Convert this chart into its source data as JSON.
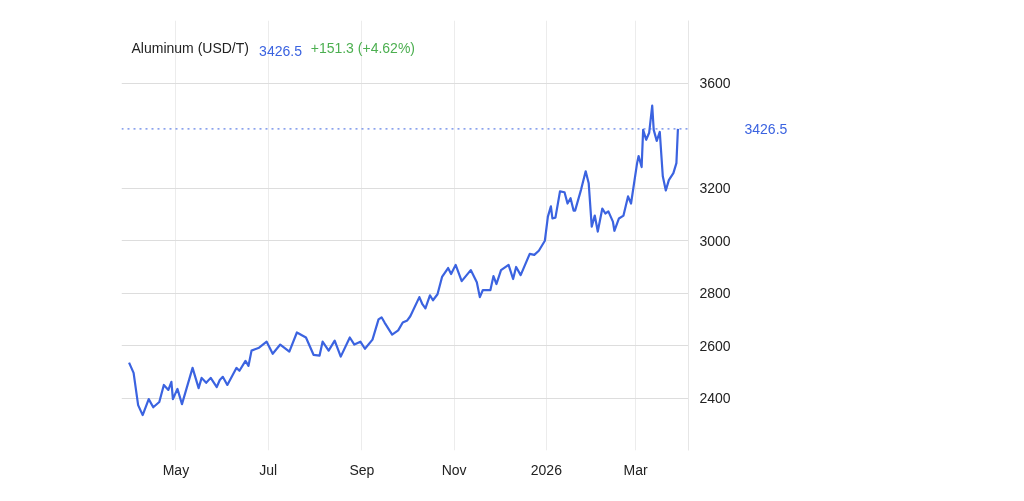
{
  "chart_data": {
    "type": "line",
    "title": "Aluminum (USD/T)",
    "annotations": [
      "3426.5",
      "+151.3 (+4.62%)"
    ],
    "x": [
      "2025-03-31",
      "2025-04-03",
      "2025-04-06",
      "2025-04-09",
      "2025-04-13",
      "2025-04-16",
      "2025-04-20",
      "2025-04-23",
      "2025-04-26",
      "2025-04-28",
      "2025-04-29",
      "2025-05-02",
      "2025-05-05",
      "2025-05-12",
      "2025-05-16",
      "2025-05-18",
      "2025-05-21",
      "2025-05-24",
      "2025-05-28",
      "2025-05-30",
      "2025-06-01",
      "2025-06-04",
      "2025-06-10",
      "2025-06-12",
      "2025-06-16",
      "2025-06-18",
      "2025-06-20",
      "2025-06-25",
      "2025-06-30",
      "2025-07-04",
      "2025-07-09",
      "2025-07-15",
      "2025-07-20",
      "2025-07-26",
      "2025-07-31",
      "2025-08-04",
      "2025-08-06",
      "2025-08-10",
      "2025-08-14",
      "2025-08-18",
      "2025-08-24",
      "2025-08-27",
      "2025-08-31",
      "2025-09-03",
      "2025-09-08",
      "2025-09-12",
      "2025-09-14",
      "2025-09-16",
      "2025-09-21",
      "2025-09-25",
      "2025-09-28",
      "2025-10-01",
      "2025-10-03",
      "2025-10-09",
      "2025-10-11",
      "2025-10-13",
      "2025-10-16",
      "2025-10-18",
      "2025-10-21",
      "2025-10-24",
      "2025-10-28",
      "2025-10-30",
      "2025-11-02",
      "2025-11-06",
      "2025-11-12",
      "2025-11-16",
      "2025-11-18",
      "2025-11-20",
      "2025-11-25",
      "2025-11-27",
      "2025-11-29",
      "2025-12-02",
      "2025-12-07",
      "2025-12-10",
      "2025-12-12",
      "2025-12-15",
      "2025-12-21",
      "2025-12-24",
      "2025-12-27",
      "2025-12-31",
      "2026-01-02",
      "2026-01-04",
      "2026-01-05",
      "2026-01-07",
      "2026-01-10",
      "2026-01-13",
      "2026-01-15",
      "2026-01-17",
      "2026-01-19",
      "2026-01-20",
      "2026-01-24",
      "2026-01-27",
      "2026-01-29",
      "2026-01-31",
      "2026-02-02",
      "2026-02-04",
      "2026-02-07",
      "2026-02-09",
      "2026-02-11",
      "2026-02-14",
      "2026-02-15",
      "2026-02-18",
      "2026-02-21",
      "2026-02-24",
      "2026-02-26",
      "2026-03-02",
      "2026-03-03",
      "2026-03-05",
      "2026-03-06",
      "2026-03-08",
      "2026-03-10",
      "2026-03-12",
      "2026-03-13",
      "2026-03-15",
      "2026-03-17",
      "2026-03-19",
      "2026-03-21",
      "2026-03-23",
      "2026-03-26",
      "2026-03-28",
      "2026-03-29"
    ],
    "series": [
      {
        "color": "#3b63e0",
        "values": [
          2535,
          2496,
          2373,
          2335,
          2396,
          2365,
          2385,
          2450,
          2431,
          2462,
          2396,
          2435,
          2377,
          2515,
          2438,
          2477,
          2458,
          2477,
          2442,
          2469,
          2481,
          2450,
          2515,
          2504,
          2542,
          2523,
          2581,
          2592,
          2615,
          2569,
          2604,
          2577,
          2650,
          2631,
          2565,
          2562,
          2615,
          2581,
          2619,
          2558,
          2631,
          2604,
          2615,
          2588,
          2623,
          2700,
          2708,
          2688,
          2642,
          2658,
          2688,
          2696,
          2712,
          2785,
          2758,
          2742,
          2792,
          2773,
          2796,
          2862,
          2896,
          2873,
          2908,
          2846,
          2888,
          2842,
          2785,
          2812,
          2812,
          2865,
          2835,
          2888,
          2908,
          2854,
          2900,
          2869,
          2950,
          2946,
          2962,
          3000,
          3092,
          3131,
          3085,
          3088,
          3188,
          3185,
          3142,
          3162,
          3115,
          3115,
          3196,
          3265,
          3219,
          3054,
          3096,
          3035,
          3123,
          3104,
          3112,
          3073,
          3038,
          3085,
          3096,
          3169,
          3142,
          3296,
          3323,
          3281,
          3423,
          3385,
          3412,
          3515,
          3423,
          3381,
          3415,
          3246,
          3192,
          3231,
          3258,
          3296,
          3426.5
        ]
      }
    ],
    "xlim": [
      "2025-03-26",
      "2026-04-05"
    ],
    "ylim": [
      2200,
      3840
    ],
    "xticks": [
      {
        "value": "2025-05-01",
        "label": "May"
      },
      {
        "value": "2025-07-01",
        "label": "Jul"
      },
      {
        "value": "2025-09-01",
        "label": "Sep"
      },
      {
        "value": "2025-11-01",
        "label": "Nov"
      },
      {
        "value": "2026-01-01",
        "label": "2026"
      },
      {
        "value": "2026-03-01",
        "label": "Mar"
      }
    ],
    "yticks": [
      2400,
      2600,
      2800,
      3000,
      3200,
      3600
    ],
    "ref_lines": [
      {
        "axis": "y",
        "value": 3426.5,
        "label": "3426.5",
        "color": "#3b63e0",
        "line_style": "dotted"
      }
    ],
    "grid": true
  }
}
